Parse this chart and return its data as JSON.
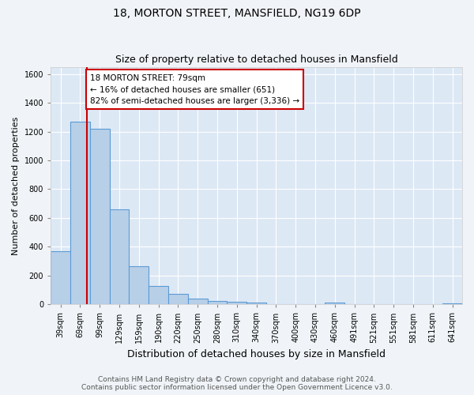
{
  "title": "18, MORTON STREET, MANSFIELD, NG19 6DP",
  "subtitle": "Size of property relative to detached houses in Mansfield",
  "xlabel": "Distribution of detached houses by size in Mansfield",
  "ylabel": "Number of detached properties",
  "bar_labels": [
    "39sqm",
    "69sqm",
    "99sqm",
    "129sqm",
    "159sqm",
    "190sqm",
    "220sqm",
    "250sqm",
    "280sqm",
    "310sqm",
    "340sqm",
    "370sqm",
    "400sqm",
    "430sqm",
    "460sqm",
    "491sqm",
    "521sqm",
    "551sqm",
    "581sqm",
    "611sqm",
    "641sqm"
  ],
  "bar_values": [
    370,
    1270,
    1220,
    660,
    265,
    125,
    75,
    38,
    25,
    18,
    15,
    0,
    0,
    0,
    15,
    0,
    0,
    0,
    0,
    0,
    5
  ],
  "bar_color": "#b8cfe8",
  "bar_edge_color": "#5b9bd5",
  "vline_x_index": 1.35,
  "vline_color": "#cc0000",
  "annotation_text": "18 MORTON STREET: 79sqm\n← 16% of detached houses are smaller (651)\n82% of semi-detached houses are larger (3,336) →",
  "annotation_box_color": "#ffffff",
  "annotation_box_edge": "#cc0000",
  "ylim": [
    0,
    1650
  ],
  "yticks": [
    0,
    200,
    400,
    600,
    800,
    1000,
    1200,
    1400,
    1600
  ],
  "background_color": "#dde8f5",
  "plot_bg_color": "#dde8f5",
  "fig_bg_color": "#f0f4f8",
  "grid_color": "#ffffff",
  "footer_line1": "Contains HM Land Registry data © Crown copyright and database right 2024.",
  "footer_line2": "Contains public sector information licensed under the Open Government Licence v3.0.",
  "title_fontsize": 10,
  "subtitle_fontsize": 9,
  "xlabel_fontsize": 9,
  "ylabel_fontsize": 8,
  "tick_fontsize": 7,
  "footer_fontsize": 6.5,
  "annot_fontsize": 7.5
}
